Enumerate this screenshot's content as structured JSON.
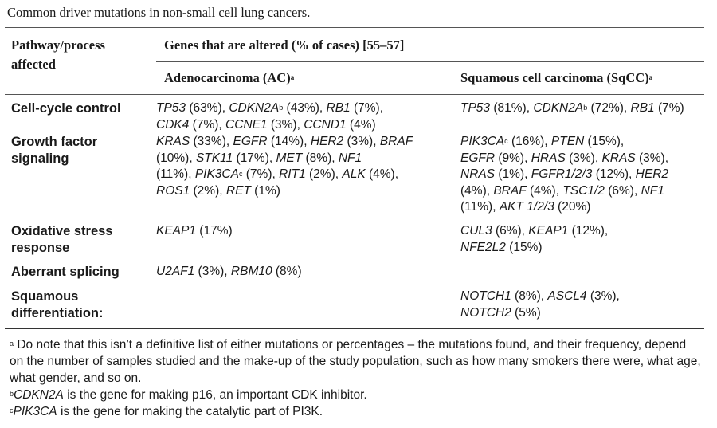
{
  "caption": "Common driver mutations in non-small cell lung cancers.",
  "header": {
    "pathway_line1": "Pathway/process",
    "pathway_line2": "affected",
    "genes": "Genes that are altered (% of cases) [55–57]",
    "ac": "Adenocarcinoma (AC)",
    "ac_sup": "a",
    "sq": "Squamous cell carcinoma (SqCC)",
    "sq_sup": "a"
  },
  "rows": [
    {
      "pathway_line1": "Cell-cycle control",
      "pathway_line2": "",
      "ac": [
        {
          "gene": "TP53",
          "pct": " (63%), "
        },
        {
          "gene": "CDKN2A",
          "sup": "b",
          "pct": " (43%), "
        },
        {
          "gene": "RB1",
          "pct": " (7%),"
        },
        {
          "gene": "CDK4",
          "pct": " (7%), ",
          "br": true
        },
        {
          "gene": "CCNE1",
          "pct": " (3%), "
        },
        {
          "gene": "CCND1",
          "pct": " (4%)"
        }
      ],
      "sq": [
        {
          "gene": "TP53",
          "pct": " (81%), "
        },
        {
          "gene": "CDKN2A",
          "sup": "b",
          "pct": " (72%), "
        },
        {
          "gene": "RB1",
          "pct": " (7%)"
        }
      ]
    },
    {
      "pathway_line1": "Growth factor",
      "pathway_line2": "signaling",
      "ac": [
        {
          "gene": "KRAS",
          "pct": " (33%), "
        },
        {
          "gene": "EGFR",
          "pct": " (14%), "
        },
        {
          "gene": "HER2",
          "pct": " (3%), "
        },
        {
          "gene": "BRAF",
          "pct": ""
        },
        {
          "gene": "",
          "pct": "(10%), ",
          "br": true
        },
        {
          "gene": "STK11",
          "pct": " (17%), "
        },
        {
          "gene": "MET",
          "pct": " (8%), "
        },
        {
          "gene": "NF1",
          "pct": ""
        },
        {
          "gene": "",
          "pct": "(11%), ",
          "br": true
        },
        {
          "gene": "PIK3CA",
          "sup": "c",
          "pct": " (7%), "
        },
        {
          "gene": "RIT1",
          "pct": " (2%), "
        },
        {
          "gene": "ALK",
          "pct": " (4%),"
        },
        {
          "gene": "ROS1",
          "pct": " (2%), ",
          "br": true
        },
        {
          "gene": "RET",
          "pct": " (1%)"
        }
      ],
      "sq": [
        {
          "gene": "PIK3CA",
          "sup": "c",
          "pct": " (16%), "
        },
        {
          "gene": "PTEN",
          "pct": " (15%),"
        },
        {
          "gene": "EGFR",
          "pct": " (9%), ",
          "br": true
        },
        {
          "gene": "HRAS",
          "pct": " (3%), "
        },
        {
          "gene": "KRAS",
          "pct": " (3%),"
        },
        {
          "gene": "NRAS",
          "pct": " (1%), ",
          "br": true
        },
        {
          "gene": "FGFR1/2/3",
          "pct": " (12%), "
        },
        {
          "gene": "HER2",
          "pct": ""
        },
        {
          "gene": "",
          "pct": "(4%), ",
          "br": true
        },
        {
          "gene": "BRAF",
          "pct": " (4%), "
        },
        {
          "gene": "TSC1/2",
          "pct": " (6%), "
        },
        {
          "gene": "NF1",
          "pct": ""
        },
        {
          "gene": "",
          "pct": "(11%), ",
          "br": true
        },
        {
          "gene": "AKT 1/2/3",
          "pct": " (20%)"
        }
      ]
    },
    {
      "pathway_line1": "Oxidative stress",
      "pathway_line2": "response",
      "ac": [
        {
          "gene": "KEAP1",
          "pct": " (17%)"
        }
      ],
      "sq": [
        {
          "gene": "CUL3",
          "pct": " (6%), "
        },
        {
          "gene": "KEAP1",
          "pct": " (12%),"
        },
        {
          "gene": "NFE2L2",
          "pct": " (15%)",
          "br": true
        }
      ]
    },
    {
      "pathway_line1": "Aberrant splicing",
      "pathway_line2": "",
      "ac": [
        {
          "gene": "U2AF1",
          "pct": " (3%), "
        },
        {
          "gene": "RBM10",
          "pct": " (8%)"
        }
      ],
      "sq": []
    },
    {
      "pathway_line1": "Squamous",
      "pathway_line2": "differentiation:",
      "ac": [],
      "sq": [
        {
          "gene": "NOTCH1",
          "pct": " (8%), "
        },
        {
          "gene": "ASCL4",
          "pct": " (3%),"
        },
        {
          "gene": "NOTCH2",
          "pct": " (5%)",
          "br": true
        }
      ]
    }
  ],
  "footnotes": [
    {
      "mark": "a",
      "gene": "",
      "text": " Do note that this isn’t a definitive list of either mutations or percentages – the mutations found, and their frequency, depend on the number of samples studied and the make-up of the study population, such as how many smokers there were, what age, what gender, and so on."
    },
    {
      "mark": "b",
      "gene": "CDKN2A",
      "text": " is the gene for making p16, an important CDK inhibitor."
    },
    {
      "mark": "c",
      "gene": "PIK3CA",
      "text": " is the gene for making the catalytic part of PI3K."
    }
  ]
}
